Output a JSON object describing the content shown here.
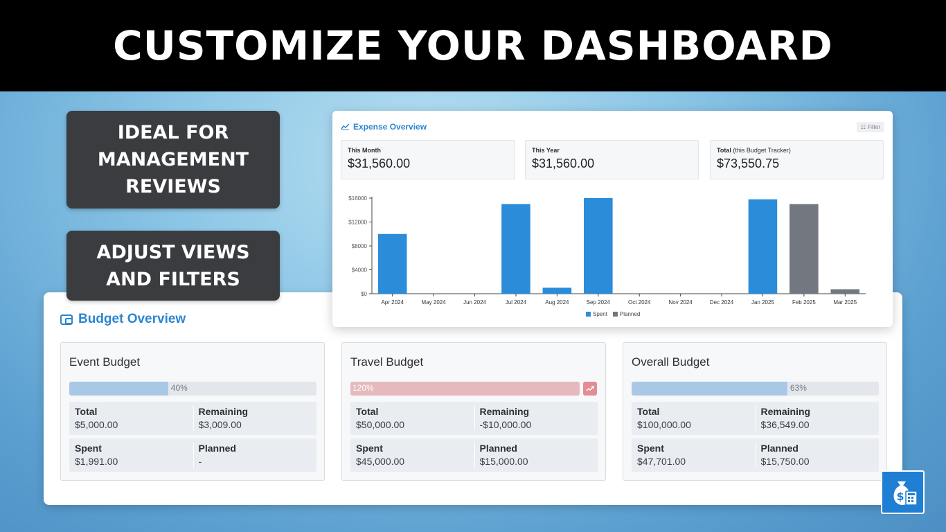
{
  "banner": {
    "title": "CUSTOMIZE YOUR DASHBOARD"
  },
  "callouts": [
    {
      "lines": [
        "IDEAL FOR",
        "MANAGEMENT",
        "REVIEWS"
      ]
    },
    {
      "lines": [
        "ADJUST VIEWS",
        "AND FILTERS"
      ]
    }
  ],
  "expense": {
    "title": "Expense Overview",
    "filter_label": "Filter",
    "kpis": [
      {
        "label": "This Month",
        "sub": "",
        "value": "$31,560.00"
      },
      {
        "label": "This Year",
        "sub": "",
        "value": "$31,560.00"
      },
      {
        "label": "Total",
        "sub": "(this Budget Tracker)",
        "value": "$73,550.75"
      }
    ]
  },
  "chart_data": {
    "type": "bar",
    "categories": [
      "Apr 2024",
      "May 2024",
      "Jun 2024",
      "Jul 2024",
      "Aug 2024",
      "Sep 2024",
      "Oct 2024",
      "Nov 2024",
      "Dec 2024",
      "Jan 2025",
      "Feb 2025",
      "Mar 2025"
    ],
    "series": [
      {
        "name": "Spent",
        "color": "#2b8cd9",
        "values": [
          10000,
          0,
          0,
          15000,
          1000,
          16000,
          0,
          0,
          0,
          15800,
          0,
          0
        ]
      },
      {
        "name": "Planned",
        "color": "#737780",
        "values": [
          0,
          0,
          0,
          0,
          0,
          0,
          0,
          0,
          0,
          0,
          15000,
          750
        ]
      }
    ],
    "y_ticks": [
      "$0",
      "$4000",
      "$8000",
      "$12000",
      "$16000"
    ],
    "ylim": [
      0,
      16000
    ],
    "legend_position": "bottom",
    "grid": false
  },
  "budget": {
    "title": "Budget Overview",
    "cards": [
      {
        "title": "Event Budget",
        "progress_label": "40%",
        "progress": 0.4,
        "over": false,
        "stats": [
          {
            "label": "Total",
            "value": "$5,000.00"
          },
          {
            "label": "Remaining",
            "value": "$3,009.00"
          },
          {
            "label": "Spent",
            "value": "$1,991.00"
          },
          {
            "label": "Planned",
            "value": "-"
          }
        ]
      },
      {
        "title": "Travel Budget",
        "progress_label": "120%",
        "progress": 1.2,
        "over": true,
        "stats": [
          {
            "label": "Total",
            "value": "$50,000.00"
          },
          {
            "label": "Remaining",
            "value": "-$10,000.00"
          },
          {
            "label": "Spent",
            "value": "$45,000.00"
          },
          {
            "label": "Planned",
            "value": "$15,000.00"
          }
        ]
      },
      {
        "title": "Overall Budget",
        "progress_label": "63%",
        "progress": 0.63,
        "over": false,
        "stats": [
          {
            "label": "Total",
            "value": "$100,000.00"
          },
          {
            "label": "Remaining",
            "value": "$36,549.00"
          },
          {
            "label": "Spent",
            "value": "$47,701.00"
          },
          {
            "label": "Planned",
            "value": "$15,750.00"
          }
        ]
      }
    ]
  },
  "icons": {
    "wallet": "wallet-icon",
    "chart": "trend-chart-icon",
    "trend_up": "trend-up-icon",
    "app": "money-bag-calculator-icon"
  }
}
